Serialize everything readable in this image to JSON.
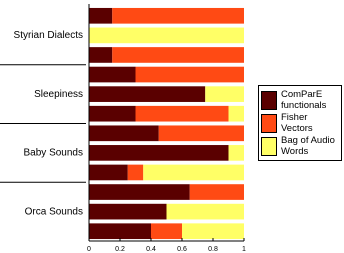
{
  "chart_data": {
    "type": "stacked-barh",
    "categories": [
      null,
      "Styrian Dialects",
      null,
      null,
      "Sleepiness",
      null,
      null,
      "Baby Sounds",
      null,
      null,
      "Orca Sounds",
      null
    ],
    "series": [
      {
        "name": "ComParE functionals",
        "color": "#5a0000",
        "values": [
          0.15,
          0,
          0.15,
          0.3,
          0.75,
          0.3,
          0.45,
          0.9,
          0.25,
          0.65,
          0.5,
          0.4
        ]
      },
      {
        "name": "Fisher Vectors",
        "color": "#ff4a14",
        "values": [
          0.85,
          0,
          0.85,
          0.7,
          0,
          0.6,
          0.55,
          0,
          0.1,
          0.35,
          0,
          0.2
        ]
      },
      {
        "name": "Bag of Audio Words",
        "color": "#ffff66",
        "values": [
          0,
          1,
          0,
          0,
          0.25,
          0.1,
          0,
          0.1,
          0.65,
          0,
          0.5,
          0.4
        ]
      }
    ],
    "xlim": [
      0,
      1
    ],
    "xticks": [
      0,
      0.2,
      0.4,
      0.6,
      0.8,
      1
    ],
    "legend": "right"
  }
}
